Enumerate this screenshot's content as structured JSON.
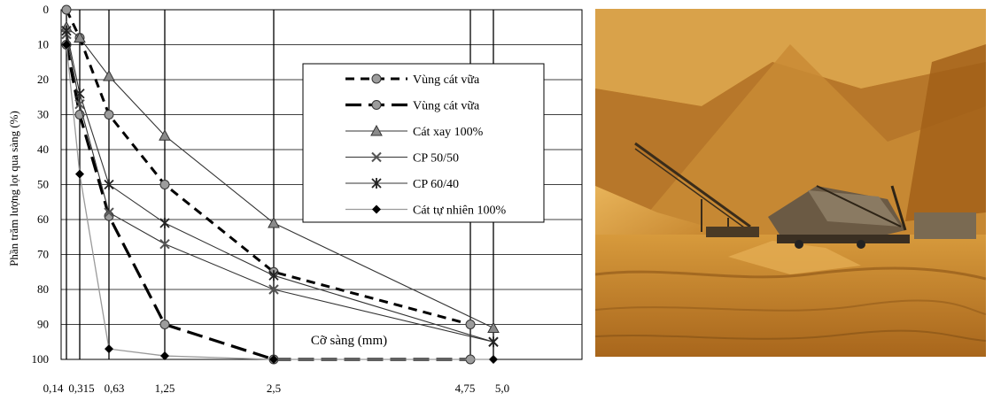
{
  "chart_data": {
    "type": "line",
    "title": "",
    "xlabel": "Cỡ sàng (mm)",
    "ylabel": "Phần trăm lượng lọt qua sàng (%)",
    "ylim": [
      0,
      100
    ],
    "y_inverted": true,
    "y_ticks": [
      "0",
      "10",
      "20",
      "30",
      "40",
      "50",
      "60",
      "70",
      "80",
      "90",
      "100"
    ],
    "x_ticks": [
      "0,14",
      "0,315",
      "0,63",
      "1,25",
      "2,5",
      "4,75",
      "5,0"
    ],
    "x_tick_values": [
      0.14,
      0.315,
      0.63,
      1.25,
      2.5,
      4.75,
      5.0
    ],
    "grid": true,
    "legend_position": "top-right",
    "series": [
      {
        "name": "Vùng cát vữa",
        "style": "dashed-circle",
        "color": "#000000",
        "x": [
          0.14,
          0.315,
          0.63,
          1.25,
          2.5,
          4.75
        ],
        "y": [
          0,
          8,
          30,
          50,
          75,
          90
        ]
      },
      {
        "name": "Vùng cát vữa",
        "style": "longdash-circle",
        "color": "#000000",
        "x": [
          0.14,
          0.315,
          0.63,
          1.25,
          2.5,
          4.75
        ],
        "y": [
          10,
          30,
          59,
          90,
          100,
          100
        ]
      },
      {
        "name": "Cát xay 100%",
        "style": "solid-triangle",
        "color": "#333333",
        "x": [
          0.14,
          0.315,
          0.63,
          1.25,
          2.5,
          5.0
        ],
        "y": [
          5,
          8,
          19,
          36,
          61,
          91
        ]
      },
      {
        "name": "CP 50/50",
        "style": "solid-x",
        "color": "#333333",
        "x": [
          0.14,
          0.315,
          0.63,
          1.25,
          2.5,
          5.0
        ],
        "y": [
          7,
          27,
          58,
          67,
          80,
          95
        ]
      },
      {
        "name": "CP 60/40",
        "style": "solid-star",
        "color": "#333333",
        "x": [
          0.14,
          0.315,
          0.63,
          1.25,
          2.5,
          5.0
        ],
        "y": [
          6,
          24,
          50,
          61,
          76,
          95
        ]
      },
      {
        "name": "Cát tự nhiên 100%",
        "style": "solid-diamond",
        "color": "#9a9a9a",
        "x": [
          0.14,
          0.315,
          0.63,
          1.25,
          2.5,
          5.0
        ],
        "y": [
          10,
          47,
          97,
          99,
          100,
          100
        ]
      }
    ]
  },
  "photo": {
    "subject": "sand-quarry-with-conveyor-screening-plant"
  }
}
